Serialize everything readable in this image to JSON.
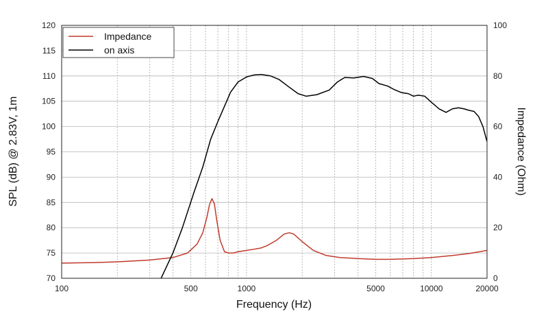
{
  "chart_data": {
    "type": "line",
    "x_scale": "log",
    "grid": true,
    "legend_position": "top-left",
    "xlabel": "Frequency (Hz)",
    "ylabel_left": "SPL (dB) @ 2.83V, 1m",
    "ylabel_right": "Impedance (Ohm)",
    "xlim": [
      100,
      20000
    ],
    "ylim_left": [
      70,
      120
    ],
    "ylim_right": [
      0,
      100
    ],
    "x_ticks": [
      {
        "value": 100,
        "label": "100"
      },
      {
        "value": 500,
        "label": "500"
      },
      {
        "value": 1000,
        "label": "1000"
      },
      {
        "value": 5000,
        "label": "5000"
      },
      {
        "value": 10000,
        "label": "10000"
      },
      {
        "value": 20000,
        "label": "20000"
      }
    ],
    "y_ticks_left": [
      "70",
      "75",
      "80",
      "85",
      "90",
      "95",
      "100",
      "105",
      "110",
      "115",
      "120"
    ],
    "y_ticks_right": [
      "0",
      "20",
      "40",
      "60",
      "80",
      "100"
    ],
    "series": [
      {
        "name": "Impedance",
        "axis": "right",
        "color": "#c0392b",
        "points": [
          [
            100,
            6.0
          ],
          [
            150,
            6.2
          ],
          [
            200,
            6.5
          ],
          [
            300,
            7.2
          ],
          [
            400,
            8.2
          ],
          [
            480,
            10.0
          ],
          [
            540,
            13.5
          ],
          [
            580,
            18.0
          ],
          [
            610,
            24.0
          ],
          [
            630,
            29.0
          ],
          [
            650,
            31.5
          ],
          [
            670,
            29.5
          ],
          [
            690,
            23.0
          ],
          [
            720,
            15.0
          ],
          [
            760,
            10.5
          ],
          [
            800,
            10.0
          ],
          [
            850,
            10.0
          ],
          [
            900,
            10.5
          ],
          [
            1000,
            11.0
          ],
          [
            1100,
            11.5
          ],
          [
            1200,
            12.0
          ],
          [
            1300,
            13.0
          ],
          [
            1450,
            15.0
          ],
          [
            1600,
            17.5
          ],
          [
            1700,
            18.0
          ],
          [
            1800,
            17.5
          ],
          [
            2000,
            14.5
          ],
          [
            2300,
            11.0
          ],
          [
            2700,
            9.0
          ],
          [
            3200,
            8.2
          ],
          [
            4000,
            7.8
          ],
          [
            5000,
            7.5
          ],
          [
            6000,
            7.5
          ],
          [
            8000,
            7.8
          ],
          [
            10000,
            8.2
          ],
          [
            13000,
            9.0
          ],
          [
            16000,
            9.8
          ],
          [
            20000,
            11.0
          ]
        ]
      },
      {
        "name": "on axis",
        "axis": "left",
        "color": "#000000",
        "points": [
          [
            345,
            70.0
          ],
          [
            400,
            75.0
          ],
          [
            450,
            80.0
          ],
          [
            520,
            87.0
          ],
          [
            580,
            92.0
          ],
          [
            640,
            97.5
          ],
          [
            700,
            101.0
          ],
          [
            760,
            104.0
          ],
          [
            820,
            106.8
          ],
          [
            900,
            108.8
          ],
          [
            1000,
            109.8
          ],
          [
            1100,
            110.2
          ],
          [
            1200,
            110.3
          ],
          [
            1350,
            110.0
          ],
          [
            1500,
            109.3
          ],
          [
            1700,
            107.8
          ],
          [
            1900,
            106.5
          ],
          [
            2100,
            106.0
          ],
          [
            2400,
            106.3
          ],
          [
            2800,
            107.2
          ],
          [
            3100,
            108.8
          ],
          [
            3400,
            109.7
          ],
          [
            3800,
            109.6
          ],
          [
            4300,
            109.9
          ],
          [
            4800,
            109.5
          ],
          [
            5200,
            108.5
          ],
          [
            5800,
            108.0
          ],
          [
            6300,
            107.3
          ],
          [
            6900,
            106.7
          ],
          [
            7500,
            106.5
          ],
          [
            8000,
            106.0
          ],
          [
            8500,
            106.2
          ],
          [
            9200,
            106.0
          ],
          [
            10000,
            104.8
          ],
          [
            11000,
            103.5
          ],
          [
            12000,
            102.8
          ],
          [
            13000,
            103.5
          ],
          [
            14000,
            103.7
          ],
          [
            15000,
            103.5
          ],
          [
            16000,
            103.2
          ],
          [
            17000,
            103.0
          ],
          [
            18000,
            102.0
          ],
          [
            19000,
            100.0
          ],
          [
            20000,
            97.0
          ]
        ]
      }
    ]
  }
}
